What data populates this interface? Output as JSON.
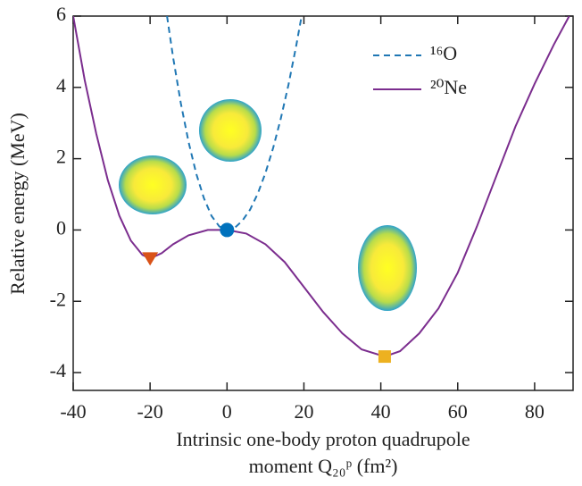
{
  "chart_data": {
    "type": "line",
    "xlabel": [
      "Intrinsic one-body proton quadrupole",
      "moment Q₂₀ᵖ (fm²)"
    ],
    "ylabel": "Relative energy (MeV)",
    "xlim": [
      -40,
      90
    ],
    "xticks": [
      -40,
      -20,
      0,
      20,
      40,
      60,
      80
    ],
    "ylim": [
      -4.5,
      6
    ],
    "yticks": [
      -4,
      -2,
      0,
      2,
      4,
      6
    ],
    "legend": "upper right",
    "series": [
      {
        "name": "¹⁶O",
        "color": "#1f77b4",
        "dash": true,
        "x": [
          -15.6,
          -14,
          -12,
          -10,
          -8,
          -6,
          -4,
          -2,
          0,
          2,
          4,
          6,
          8,
          10,
          12,
          14,
          16,
          18,
          19.4
        ],
        "values": [
          6.0,
          4.83,
          3.55,
          2.47,
          1.58,
          0.89,
          0.39,
          0.1,
          0,
          0.06,
          0.26,
          0.57,
          1.02,
          1.6,
          2.3,
          3.13,
          4.08,
          5.17,
          6.0
        ]
      },
      {
        "name": "²⁰Ne",
        "color": "#7b2d8e",
        "dash": false,
        "x": [
          -40,
          -37,
          -34,
          -31,
          -28,
          -25,
          -22,
          -20,
          -17,
          -14,
          -10,
          -5,
          0,
          5,
          10,
          15,
          20,
          25,
          30,
          35,
          41,
          45,
          50,
          55,
          60,
          65,
          70,
          75,
          80,
          85,
          89
        ],
        "values": [
          6.0,
          4.2,
          2.7,
          1.4,
          0.4,
          -0.3,
          -0.7,
          -0.8,
          -0.65,
          -0.4,
          -0.15,
          0,
          0,
          -0.1,
          -0.4,
          -0.9,
          -1.6,
          -2.3,
          -2.9,
          -3.35,
          -3.55,
          -3.4,
          -2.9,
          -2.2,
          -1.2,
          0.1,
          1.5,
          2.9,
          4.1,
          5.2,
          6.0
        ]
      }
    ],
    "markers": [
      {
        "x": -20,
        "y": -0.8,
        "color": "#d95319",
        "shape": "triangle-down"
      },
      {
        "x": 0,
        "y": 0,
        "color": "#0072bd",
        "shape": "circle"
      },
      {
        "x": 41,
        "y": -3.55,
        "color": "#edb120",
        "shape": "square"
      }
    ]
  }
}
